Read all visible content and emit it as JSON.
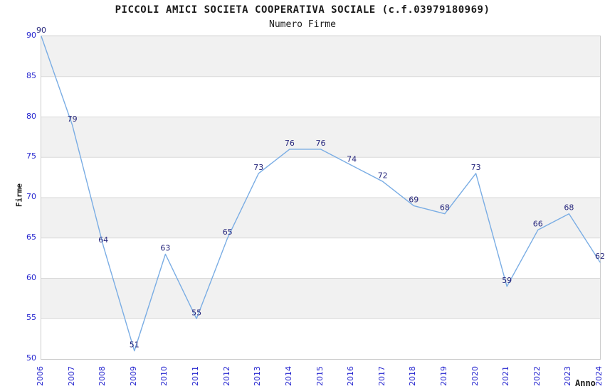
{
  "chart_data": {
    "type": "line",
    "title": "PICCOLI AMICI SOCIETA COOPERATIVA SOCIALE (c.f.03979180969)",
    "subtitle": "Numero Firme",
    "xlabel": "Anno",
    "ylabel": "Firme",
    "categories": [
      "2006",
      "2007",
      "2008",
      "2009",
      "2010",
      "2011",
      "2012",
      "2013",
      "2014",
      "2015",
      "2016",
      "2017",
      "2018",
      "2019",
      "2020",
      "2021",
      "2022",
      "2023",
      "2024"
    ],
    "values": [
      90,
      79,
      64,
      51,
      63,
      55,
      65,
      73,
      76,
      76,
      74,
      72,
      69,
      68,
      73,
      59,
      66,
      68,
      62
    ],
    "ylim": [
      50,
      90
    ],
    "ytick_step": 5,
    "grid": true,
    "alternating_bands": true,
    "legend": "none",
    "point_labels_visible": true,
    "colors": {
      "line": "#7aade4",
      "point_label": "#28287d",
      "tick_label": "#2424cf",
      "band": "#f1f1f1",
      "gridline": "#d9d9d9",
      "plot_border": "#cccccc",
      "text": "#1a1a1a",
      "background": "#ffffff"
    }
  }
}
